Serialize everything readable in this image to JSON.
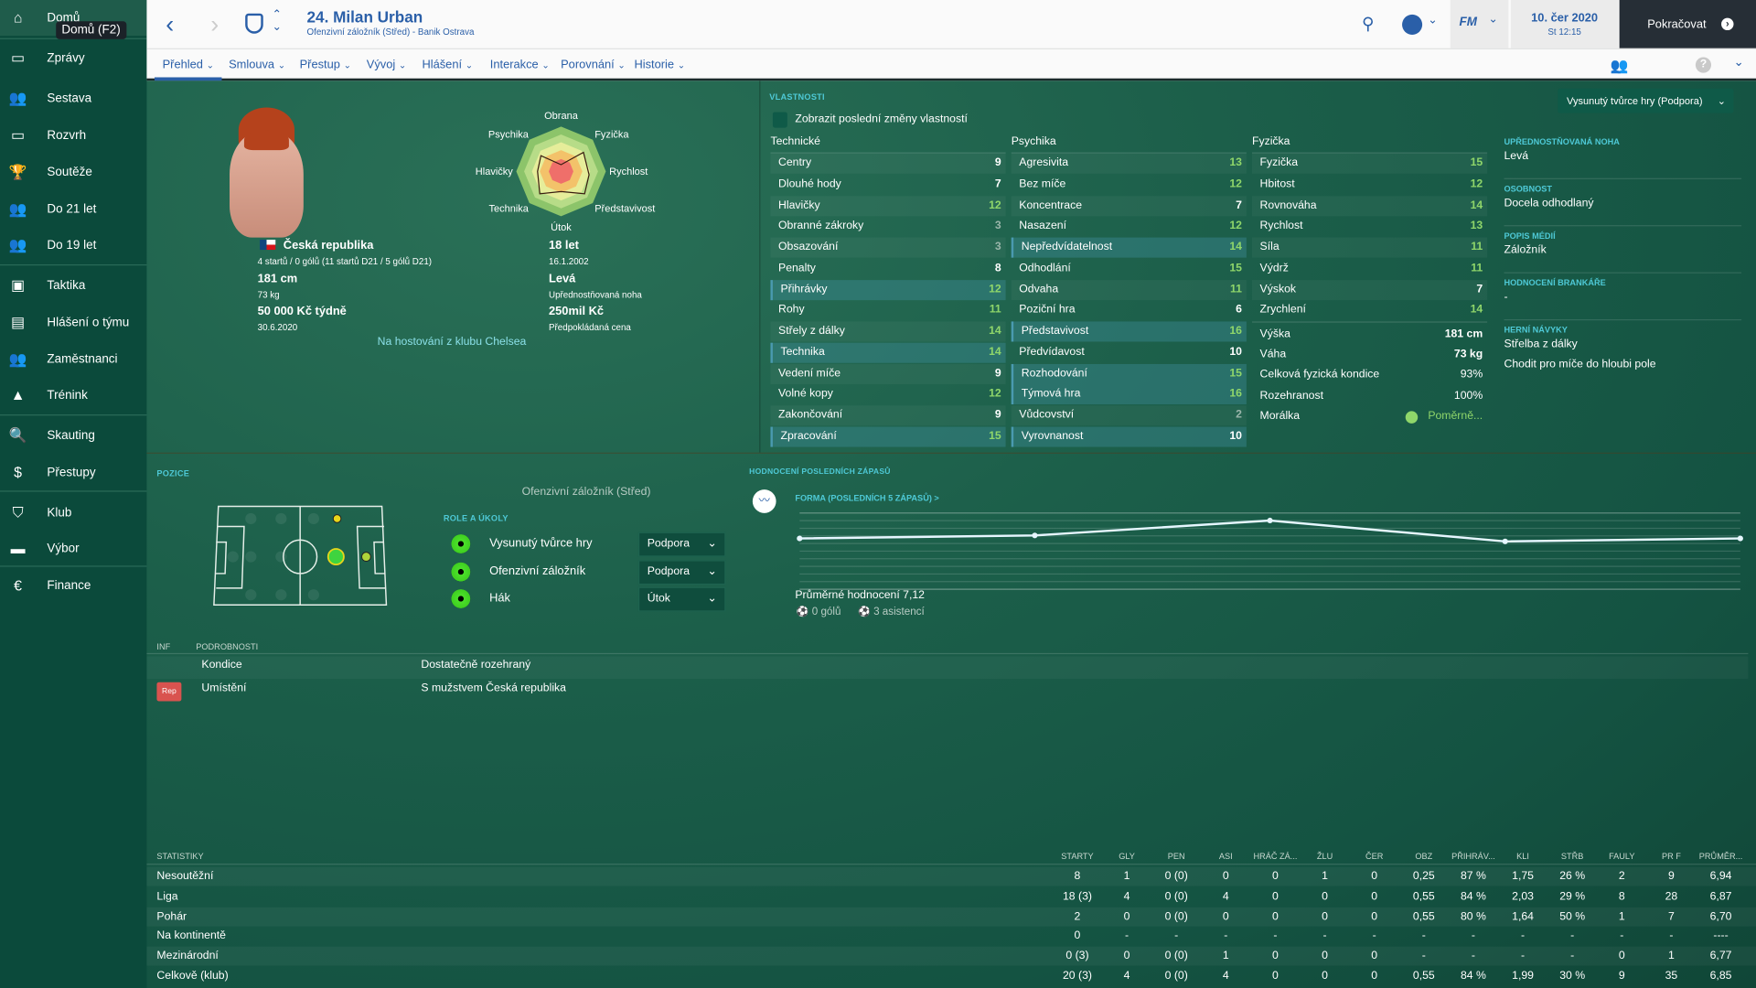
{
  "sidebar": {
    "items": [
      {
        "label": "Domů",
        "icon": "home-icon",
        "glyph": "⌂"
      },
      {
        "label": "Zprávy",
        "icon": "inbox-icon",
        "glyph": "▭"
      },
      {
        "label": "Sestava",
        "icon": "squad-icon",
        "glyph": "👥"
      },
      {
        "label": "Rozvrh",
        "icon": "calendar-icon",
        "glyph": "▭"
      },
      {
        "label": "Soutěže",
        "icon": "trophy-icon",
        "glyph": "🏆"
      },
      {
        "label": "Do 21 let",
        "icon": "u21-icon",
        "glyph": "👥"
      },
      {
        "label": "Do 19 let",
        "icon": "u19-icon",
        "glyph": "👥"
      },
      {
        "label": "Taktika",
        "icon": "tactics-icon",
        "glyph": "▣"
      },
      {
        "label": "Hlášení o týmu",
        "icon": "report-icon",
        "glyph": "▤"
      },
      {
        "label": "Zaměstnanci",
        "icon": "staff-icon",
        "glyph": "👥"
      },
      {
        "label": "Trénink",
        "icon": "cone-icon",
        "glyph": "▲"
      },
      {
        "label": "Skauting",
        "icon": "search-icon",
        "glyph": "🔍"
      },
      {
        "label": "Přestupy",
        "icon": "transfer-icon",
        "glyph": "$"
      },
      {
        "label": "Klub",
        "icon": "club-shield-icon",
        "glyph": "⛉"
      },
      {
        "label": "Výbor",
        "icon": "board-icon",
        "glyph": "▬"
      },
      {
        "label": "Finance",
        "icon": "finance-icon",
        "glyph": "€"
      }
    ],
    "tooltip": "Domů (F2)"
  },
  "header": {
    "title": "24. Milan Urban",
    "subtitle": "Ofenzivní záložník (Střed) - Banik Ostrava",
    "date": "10. čer 2020",
    "time": "St 12:15",
    "continue": "Pokračovat",
    "fm": "FM"
  },
  "tabs": [
    {
      "label": "Přehled"
    },
    {
      "label": "Smlouva"
    },
    {
      "label": "Přestup"
    },
    {
      "label": "Vývoj"
    },
    {
      "label": "Hlášení"
    },
    {
      "label": "Interakce"
    },
    {
      "label": "Porovnání"
    },
    {
      "label": "Historie"
    }
  ],
  "profile": {
    "nation": "Česká republika",
    "caps": "4 startů / 0 gólů (11 startů D21 / 5 gólů D21)",
    "height": "181 cm",
    "weight": "73 kg",
    "wage": "50 000 Kč týdně",
    "contract": "30.6.2020",
    "age": "18 let",
    "dob": "16.1.2002",
    "foot": "Levá",
    "foot_label": "Upřednostňovaná noha",
    "value": "250mil Kč",
    "value_label": "Předpokládaná cena",
    "loan": "Na hostování z klubu Chelsea"
  },
  "radar": {
    "labels": [
      "Obrana",
      "Fyzička",
      "Rychlost",
      "Představivost",
      "Útok",
      "Technika",
      "Hlavičky",
      "Psychika"
    ]
  },
  "attributes": {
    "title": "VLASTNOSTI",
    "toggle": "Zobrazit poslední změny vlastností",
    "role_select": "Vysunutý tvůrce hry (Podpora)",
    "technical": {
      "title": "Technické",
      "rows": [
        [
          "Centry",
          9
        ],
        [
          "Dlouhé hody",
          7
        ],
        [
          "Hlavičky",
          12
        ],
        [
          "Obranné zákroky",
          3
        ],
        [
          "Obsazování",
          3
        ],
        [
          "Penalty",
          8
        ],
        [
          "Přihrávky",
          12,
          1
        ],
        [
          "Rohy",
          11
        ],
        [
          "Střely z dálky",
          14
        ],
        [
          "Technika",
          14,
          1
        ],
        [
          "Vedení míče",
          9
        ],
        [
          "Volné kopy",
          12
        ],
        [
          "Zakončování",
          9
        ],
        [
          "Zpracování",
          15,
          1
        ]
      ]
    },
    "mental": {
      "title": "Psychika",
      "rows": [
        [
          "Agresivita",
          13
        ],
        [
          "Bez míče",
          12
        ],
        [
          "Koncentrace",
          7
        ],
        [
          "Nasazení",
          12
        ],
        [
          "Nepředvídatelnost",
          14,
          1
        ],
        [
          "Odhodlání",
          15
        ],
        [
          "Odvaha",
          11
        ],
        [
          "Poziční hra",
          6
        ],
        [
          "Představivost",
          16,
          1
        ],
        [
          "Předvídavost",
          10
        ],
        [
          "Rozhodování",
          15,
          1
        ],
        [
          "Týmová hra",
          16,
          1
        ],
        [
          "Vůdcovství",
          2
        ],
        [
          "Vyrovnanost",
          10,
          1
        ]
      ]
    },
    "physical": {
      "title": "Fyzička",
      "rows": [
        [
          "Fyzička",
          15
        ],
        [
          "Hbitost",
          12
        ],
        [
          "Rovnováha",
          14
        ],
        [
          "Rychlost",
          13
        ],
        [
          "Síla",
          11
        ],
        [
          "Výdrž",
          11
        ],
        [
          "Výskok",
          7
        ],
        [
          "Zrychlení",
          14
        ]
      ]
    },
    "extra": [
      [
        "Výška",
        "181 cm"
      ],
      [
        "Váha",
        "73 kg"
      ],
      [
        "Celková fyzická kondice",
        "93%"
      ],
      [
        "Rozehranost",
        "100%"
      ],
      [
        "Morálka",
        "Poměrně..."
      ]
    ]
  },
  "info": [
    {
      "label": "UPŘEDNOSTŇOVANÁ NOHA",
      "values": [
        "Levá"
      ]
    },
    {
      "label": "OSOBNOST",
      "values": [
        "Docela odhodlaný"
      ]
    },
    {
      "label": "POPIS MÉDIÍ",
      "values": [
        "Záložník"
      ]
    },
    {
      "label": "HODNOCENÍ BRANKÁŘE",
      "values": [
        "-"
      ]
    },
    {
      "label": "HERNÍ NÁVYKY",
      "values": [
        "Střelba z dálky",
        "Chodit pro míče do hloubi pole"
      ]
    }
  ],
  "position": {
    "title": "POZICE",
    "name": "Ofenzivní záložník (Střed)",
    "roles_title": "ROLE A ÚKOLY",
    "roles": [
      {
        "name": "Vysunutý tvůrce hry",
        "duty": "Podpora"
      },
      {
        "name": "Ofenzivní záložník",
        "duty": "Podpora"
      },
      {
        "name": "Hák",
        "duty": "Útok"
      }
    ]
  },
  "form": {
    "title": "HODNOCENÍ POSLEDNÍCH ZÁPASŮ",
    "subtitle": "FORMA (POSLEDNÍCH 5 ZÁPASŮ) >",
    "average": "Průměrné hodnocení 7,12",
    "goals": "0 gólů",
    "assists": "3 asistencí"
  },
  "chart_data": {
    "type": "line",
    "series": [
      {
        "values": [
          7.0,
          7.1,
          7.6,
          6.9,
          7.0
        ]
      }
    ],
    "ylim": [
      5.3,
      7.85
    ],
    "grid": true
  },
  "details": {
    "col1": "INF",
    "col2": "PODROBNOSTI",
    "rows": [
      {
        "badge": "",
        "label": "Kondice",
        "value": "Dostatečně rozehraný"
      },
      {
        "badge": "Rep",
        "label": "Umístění",
        "value": "S mužstvem Česká republika"
      }
    ]
  },
  "stats": {
    "title": "STATISTIKY",
    "columns": [
      "STARTY",
      "GLY",
      "PEN",
      "ASI",
      "HRÁČ ZÁ...",
      "ŽLU",
      "ČER",
      "OBZ",
      "PŘIHRÁV...",
      "KLI",
      "STŘB",
      "FAULY",
      "PR F",
      "PRŮMĚR..."
    ],
    "rows": [
      {
        "label": "Nesoutěžní",
        "cells": [
          "8",
          "1",
          "0 (0)",
          "0",
          "0",
          "1",
          "0",
          "0,25",
          "87 %",
          "1,75",
          "26 %",
          "2",
          "9",
          "6,94"
        ]
      },
      {
        "label": "Liga",
        "cells": [
          "18 (3)",
          "4",
          "0 (0)",
          "4",
          "0",
          "0",
          "0",
          "0,55",
          "84 %",
          "2,03",
          "29 %",
          "8",
          "28",
          "6,87"
        ]
      },
      {
        "label": "Pohár",
        "cells": [
          "2",
          "0",
          "0 (0)",
          "0",
          "0",
          "0",
          "0",
          "0,55",
          "80 %",
          "1,64",
          "50 %",
          "1",
          "7",
          "6,70"
        ]
      },
      {
        "label": "Na kontinentě",
        "cells": [
          "0",
          "-",
          "-",
          "-",
          "-",
          "-",
          "-",
          "-",
          "-",
          "-",
          "-",
          "-",
          "-",
          "----"
        ]
      },
      {
        "label": "Mezinárodní",
        "cells": [
          "0 (3)",
          "0",
          "0 (0)",
          "1",
          "0",
          "0",
          "0",
          "-",
          "-",
          "-",
          "-",
          "0",
          "1",
          "6,77"
        ]
      },
      {
        "label": "Celkově (klub)",
        "cells": [
          "20 (3)",
          "4",
          "0 (0)",
          "4",
          "0",
          "0",
          "0",
          "0,55",
          "84 %",
          "1,99",
          "30 %",
          "9",
          "35",
          "6,85"
        ]
      }
    ]
  }
}
